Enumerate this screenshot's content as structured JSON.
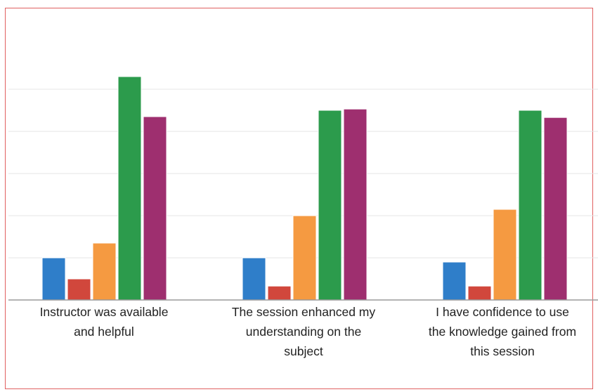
{
  "chart_data": {
    "type": "bar",
    "categories": [
      "Instructor was available and helpful",
      "The session enhanced my understanding on the subject",
      "I have confidence to use the knowledge gained from this session"
    ],
    "category_label_lines": [
      [
        "Instructor was available",
        "and helpful"
      ],
      [
        "The session enhanced my",
        "understanding on the",
        "subject"
      ],
      [
        "I have confidence to use",
        "the knowledge gained from",
        "this session"
      ]
    ],
    "series": [
      {
        "color": "#2f7ec9",
        "values": [
          10,
          10,
          9
        ]
      },
      {
        "color": "#d1473c",
        "values": [
          5,
          3.3,
          3.3
        ]
      },
      {
        "color": "#f59a41",
        "values": [
          13.5,
          20,
          21.5
        ]
      },
      {
        "color": "#2c9b4c",
        "values": [
          53,
          45,
          45
        ]
      },
      {
        "color": "#9e2f6f",
        "values": [
          43.5,
          45.3,
          43.3
        ]
      }
    ],
    "ylim": [
      0,
      60
    ],
    "gridlines": [
      10,
      20,
      30,
      40,
      50
    ],
    "grid": true,
    "legend": "none"
  }
}
